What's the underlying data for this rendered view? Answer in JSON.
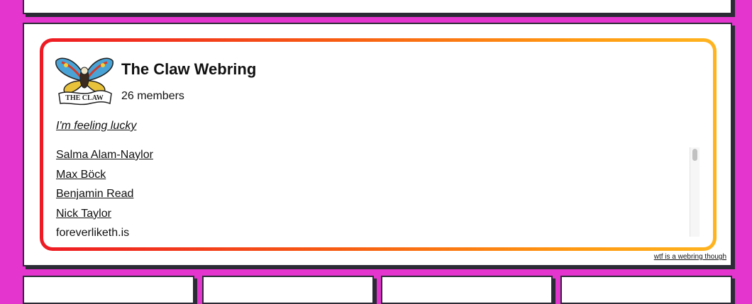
{
  "webring": {
    "title": "The Claw Webring",
    "members_count": "26 members",
    "lucky_link": "I'm feeling lucky",
    "logo_text": "THE CLAW",
    "members": [
      "Salma Alam-Naylor",
      "Max Böck",
      "Benjamin Read",
      "Nick Taylor",
      "foreverliketh.is"
    ],
    "footnote": "wtf is a webring though"
  },
  "colors": {
    "background": "#e535cf",
    "ring_start": "#ee1a24",
    "ring_end": "#ffb41e"
  }
}
